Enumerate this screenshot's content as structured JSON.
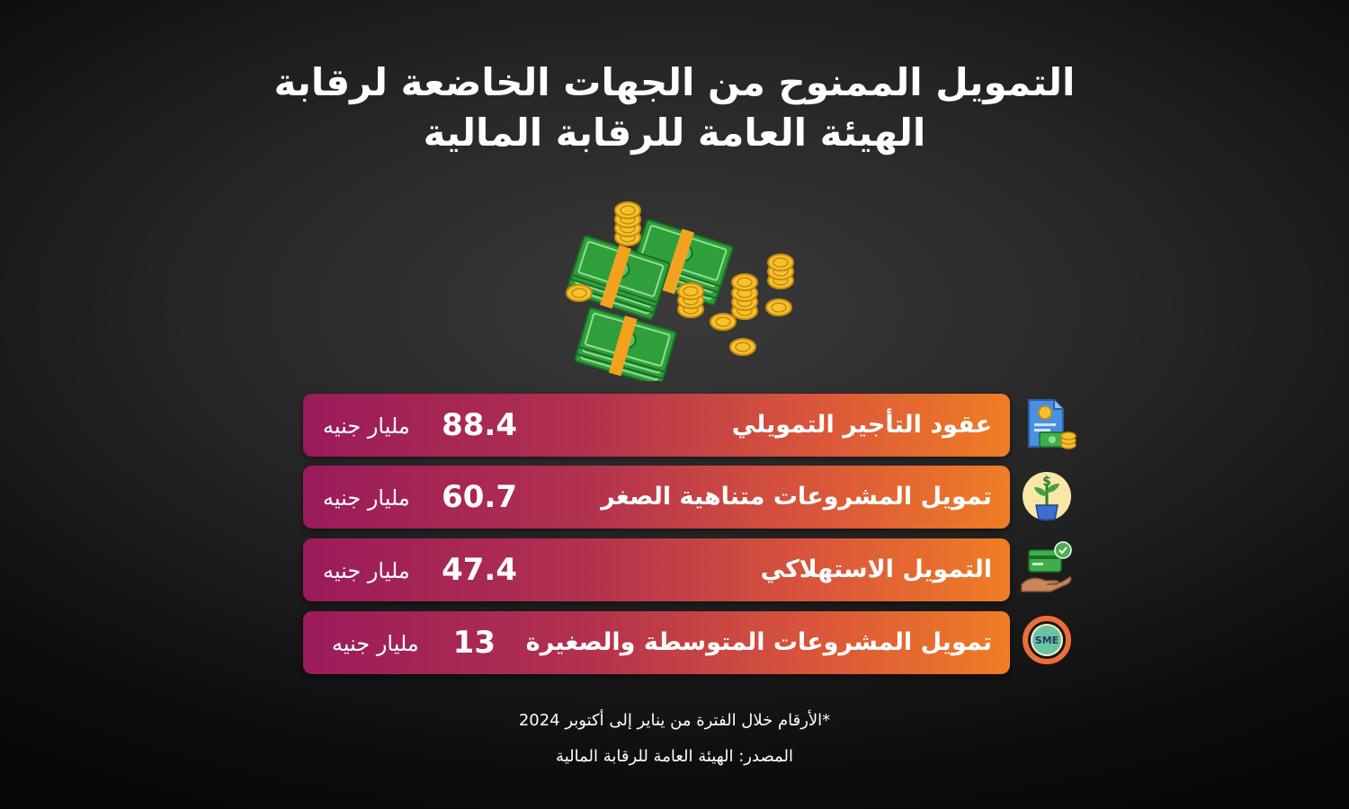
{
  "title_line1": "التمويل الممنوح من الجهات الخاضعة لرقابة",
  "title_line2": "الهيئة العامة للرقابة المالية",
  "chart_data": {
    "type": "table",
    "categories": [
      "عقود التأجير التمويلي",
      "تمويل المشروعات متناهية الصغر",
      "التمويل الاستهلاكي",
      "تمويل المشروعات المتوسطة والصغيرة"
    ],
    "values": [
      88.4,
      60.7,
      47.4,
      13
    ],
    "unit": "مليار جنيه"
  },
  "rows": [
    {
      "label": "عقود التأجير التمويلي",
      "value": "88.4",
      "unit": "مليار جنيه",
      "icon": "leasing-contract-icon"
    },
    {
      "label": "تمويل المشروعات متناهية الصغر",
      "value": "60.7",
      "unit": "مليار جنيه",
      "icon": "plant-money-icon"
    },
    {
      "label": "التمويل الاستهلاكي",
      "value": "47.4",
      "unit": "مليار جنيه",
      "icon": "card-hand-icon"
    },
    {
      "label": "تمويل المشروعات المتوسطة والصغيرة",
      "value": "13",
      "unit": "مليار جنيه",
      "icon": "sme-icon",
      "icon_text": "SME"
    }
  ],
  "note": "*الأرقام خلال الفترة من يناير إلى أكتوبر 2024",
  "source": "المصدر: الهيئة العامة للرقابة المالية",
  "colors": {
    "row_start": "#9a1b5b",
    "row_end": "#f07d25",
    "cash_green": "#2e9e3a",
    "coin_gold": "#f2b320"
  }
}
